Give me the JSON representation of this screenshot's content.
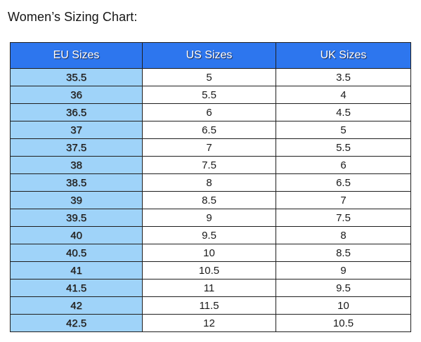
{
  "title": "Women’s Sizing Chart:",
  "table": {
    "headers": [
      "EU Sizes",
      "US Sizes",
      "UK Sizes"
    ],
    "rows": [
      [
        "35.5",
        "5",
        "3.5"
      ],
      [
        "36",
        "5.5",
        "4"
      ],
      [
        "36.5",
        "6",
        "4.5"
      ],
      [
        "37",
        "6.5",
        "5"
      ],
      [
        "37.5",
        "7",
        "5.5"
      ],
      [
        "38",
        "7.5",
        "6"
      ],
      [
        "38.5",
        "8",
        "6.5"
      ],
      [
        "39",
        "8.5",
        "7"
      ],
      [
        "39.5",
        "9",
        "7.5"
      ],
      [
        "40",
        "9.5",
        "8"
      ],
      [
        "40.5",
        "10",
        "8.5"
      ],
      [
        "41",
        "10.5",
        "9"
      ],
      [
        "41.5",
        "11",
        "9.5"
      ],
      [
        "42",
        "11.5",
        "10"
      ],
      [
        "42.5",
        "12",
        "10.5"
      ]
    ]
  },
  "colors": {
    "header_bg": "#2d76ee",
    "eu_column_bg": "#9fd3f9",
    "border": "#1f1f1f"
  }
}
